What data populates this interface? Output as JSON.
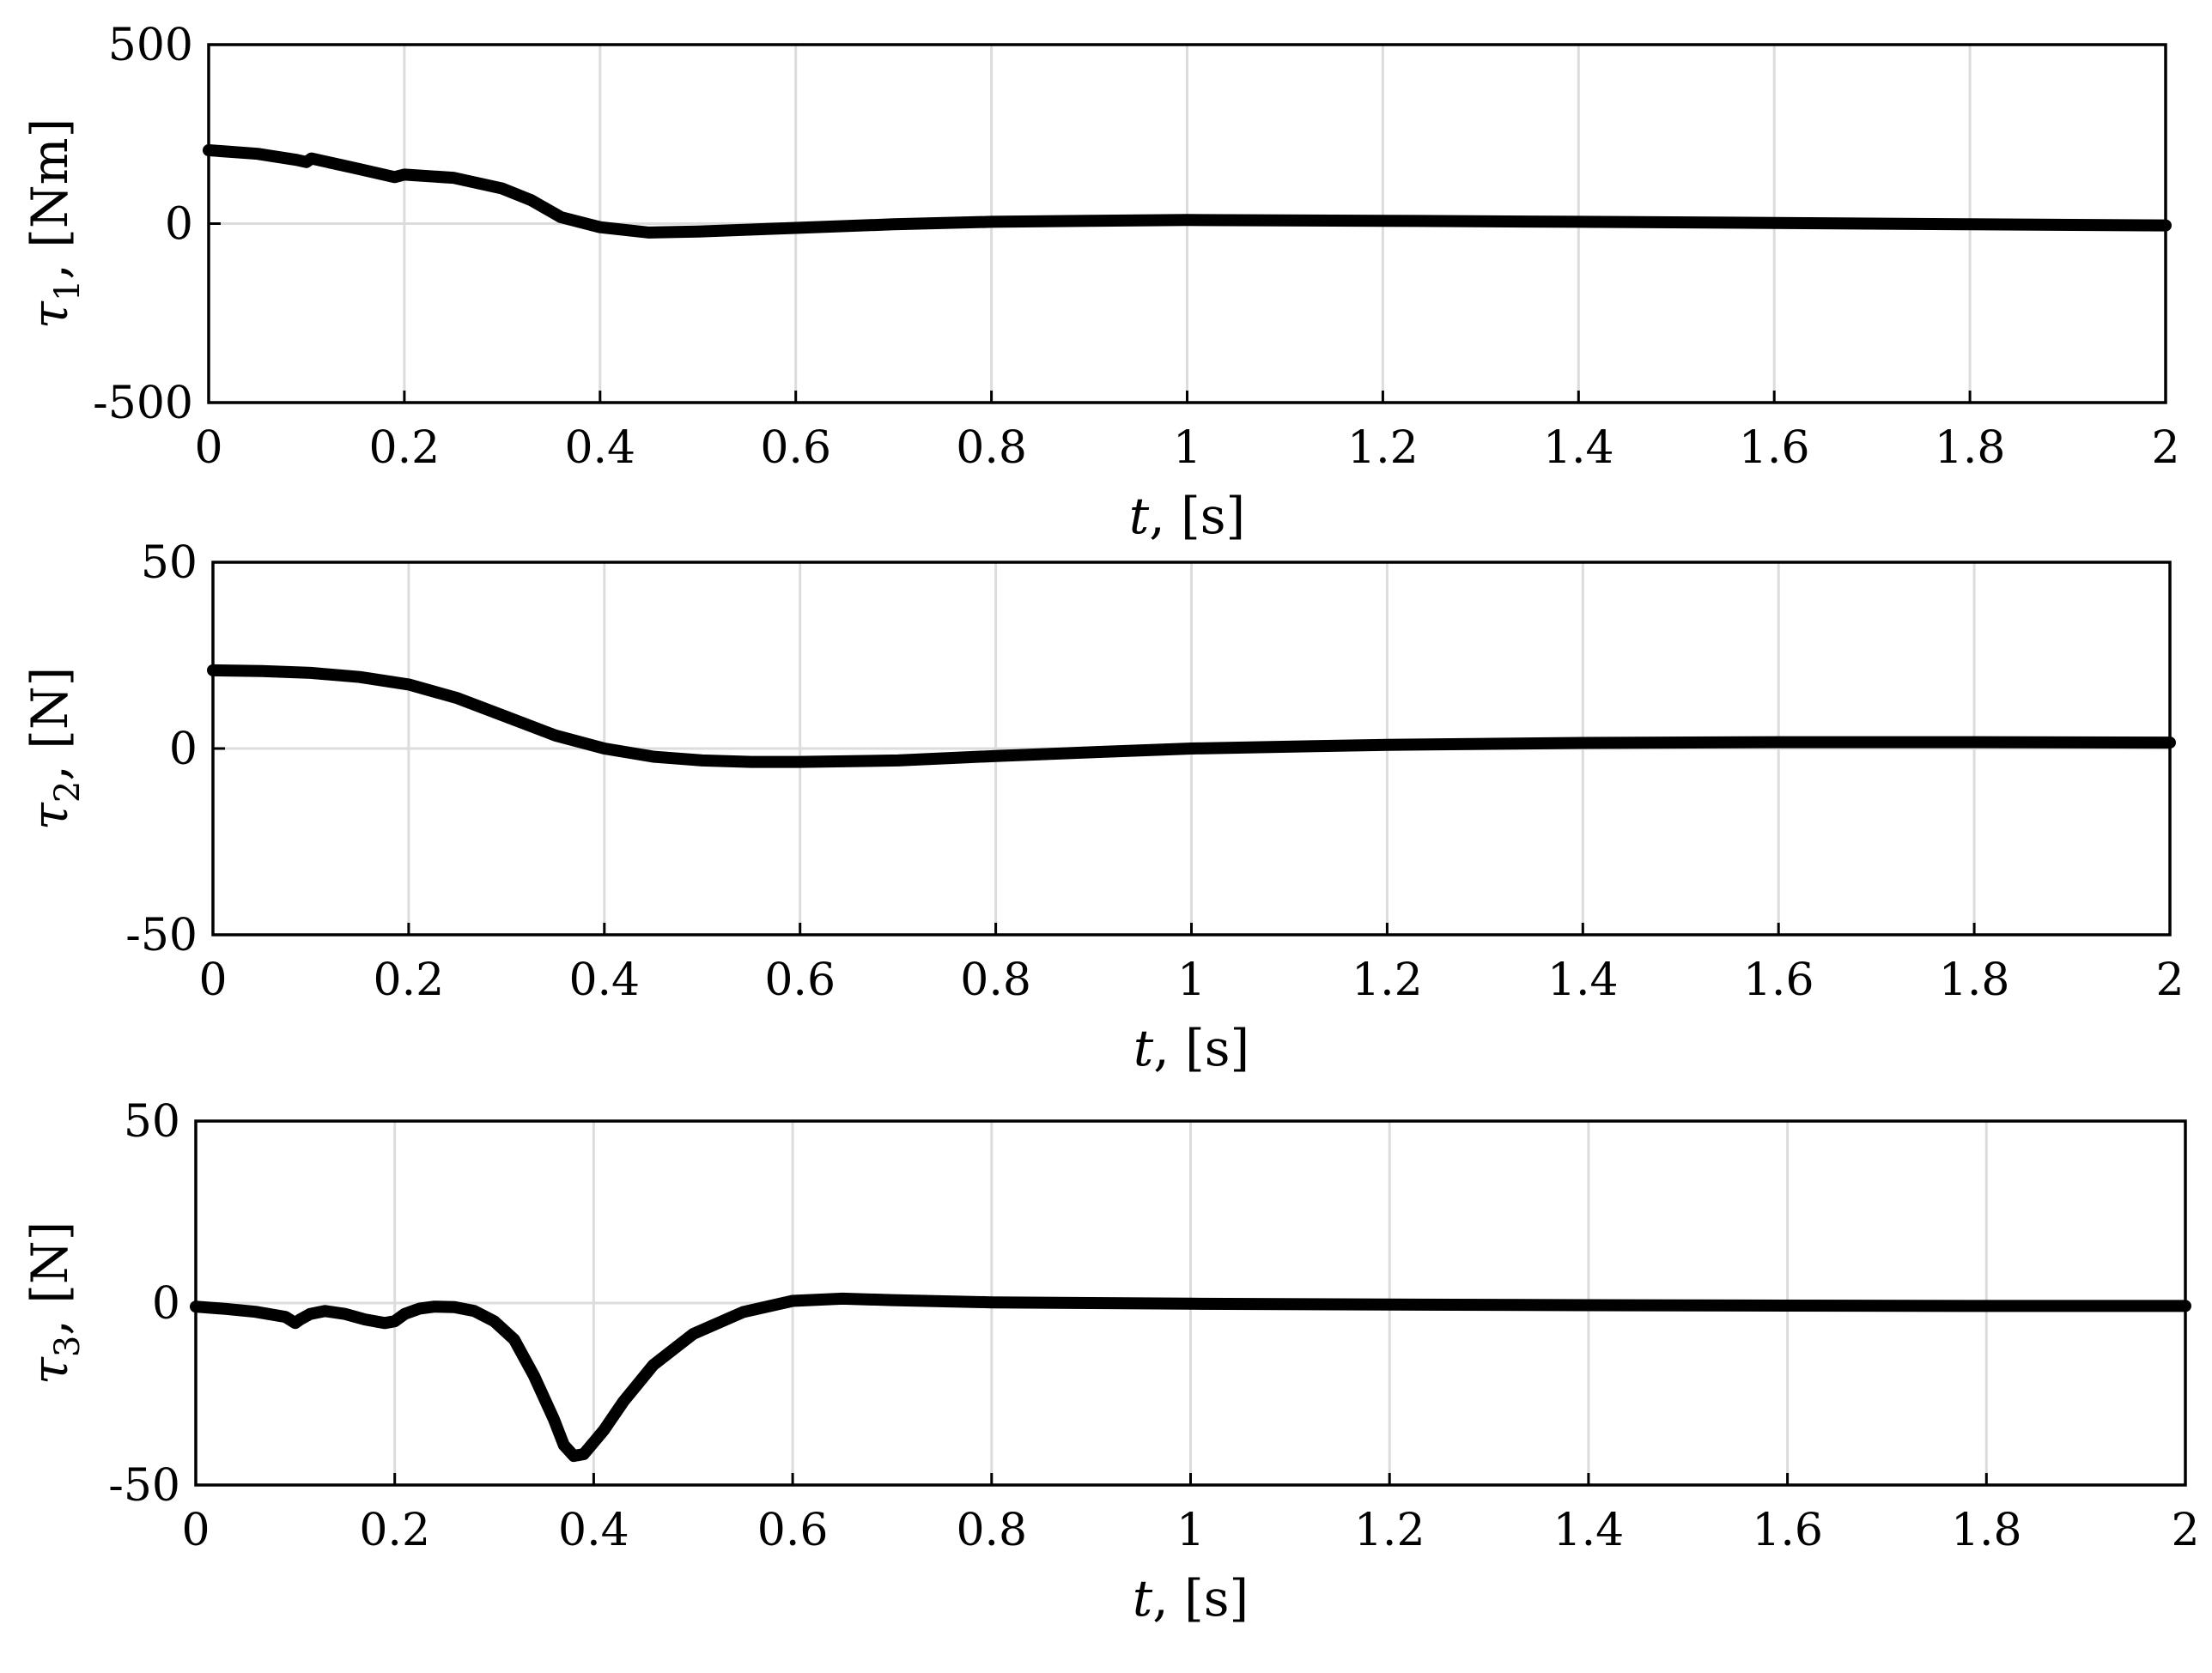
{
  "chart_data": [
    {
      "type": "line",
      "xlabel": "t, [s]",
      "ylabel": "τ1, [Nm]",
      "xlim": [
        0,
        2
      ],
      "ylim": [
        -500,
        500
      ],
      "xticks": [
        0,
        0.2,
        0.4,
        0.6,
        0.8,
        1,
        1.2,
        1.4,
        1.6,
        1.8,
        2
      ],
      "xtick_labels": [
        "0",
        "0.2",
        "0.4",
        "0.6",
        "0.8",
        "1",
        "1.2",
        "1.4",
        "1.6",
        "1.8",
        "2"
      ],
      "yticks": [
        -500,
        0,
        500
      ],
      "ytick_labels": [
        "-500",
        "0",
        "500"
      ],
      "grid": "vertical",
      "series": [
        {
          "color": "#000000",
          "x": [
            0,
            0.05,
            0.09,
            0.1,
            0.105,
            0.15,
            0.19,
            0.2,
            0.25,
            0.3,
            0.33,
            0.36,
            0.4,
            0.45,
            0.5,
            0.6,
            0.7,
            0.8,
            0.9,
            1.0,
            1.2,
            1.4,
            1.6,
            1.8,
            2.0
          ],
          "y": [
            205,
            195,
            178,
            172,
            182,
            155,
            130,
            137,
            128,
            98,
            65,
            18,
            -10,
            -25,
            -22,
            -12,
            -2,
            5,
            8,
            10,
            8,
            5,
            2,
            -2,
            -5
          ]
        }
      ]
    },
    {
      "type": "line",
      "xlabel": "t, [s]",
      "ylabel": "τ2, [N]",
      "xlim": [
        0,
        2
      ],
      "ylim": [
        -50,
        50
      ],
      "xticks": [
        0,
        0.2,
        0.4,
        0.6,
        0.8,
        1,
        1.2,
        1.4,
        1.6,
        1.8,
        2
      ],
      "xtick_labels": [
        "0",
        "0.2",
        "0.4",
        "0.6",
        "0.8",
        "1",
        "1.2",
        "1.4",
        "1.6",
        "1.8",
        "2"
      ],
      "yticks": [
        -50,
        0,
        50
      ],
      "ytick_labels": [
        "-50",
        "0",
        "50"
      ],
      "grid": "vertical",
      "series": [
        {
          "color": "#000000",
          "x": [
            0,
            0.05,
            0.1,
            0.15,
            0.2,
            0.25,
            0.3,
            0.35,
            0.4,
            0.45,
            0.5,
            0.55,
            0.6,
            0.7,
            0.8,
            0.9,
            1.0,
            1.2,
            1.4,
            1.6,
            1.8,
            2.0
          ],
          "y": [
            21,
            20.8,
            20.3,
            19.2,
            17.2,
            13.5,
            8.5,
            3.5,
            0,
            -2.2,
            -3.2,
            -3.6,
            -3.6,
            -3.2,
            -2,
            -1,
            0,
            1,
            1.5,
            1.7,
            1.7,
            1.6
          ]
        }
      ]
    },
    {
      "type": "line",
      "xlabel": "t, [s]",
      "ylabel": "τ3, [N]",
      "xlim": [
        0,
        2
      ],
      "ylim": [
        -50,
        50
      ],
      "xticks": [
        0,
        0.2,
        0.4,
        0.6,
        0.8,
        1,
        1.2,
        1.4,
        1.6,
        1.8,
        2
      ],
      "xtick_labels": [
        "0",
        "0.2",
        "0.4",
        "0.6",
        "0.8",
        "1",
        "1.2",
        "1.4",
        "1.6",
        "1.8",
        "2"
      ],
      "yticks": [
        -50,
        0,
        50
      ],
      "ytick_labels": [
        "-50",
        "0",
        "50"
      ],
      "grid": "vertical",
      "series": [
        {
          "color": "#000000",
          "x": [
            0,
            0.03,
            0.06,
            0.09,
            0.1,
            0.105,
            0.115,
            0.13,
            0.15,
            0.17,
            0.19,
            0.2,
            0.21,
            0.225,
            0.24,
            0.26,
            0.28,
            0.3,
            0.32,
            0.34,
            0.36,
            0.37,
            0.38,
            0.39,
            0.41,
            0.43,
            0.46,
            0.5,
            0.55,
            0.6,
            0.65,
            0.7,
            0.8,
            0.9,
            1.0,
            1.2,
            1.4,
            1.6,
            1.8,
            2.0
          ],
          "y": [
            -1,
            -1.6,
            -2.4,
            -3.8,
            -5.5,
            -4.5,
            -3,
            -2.2,
            -3,
            -4.5,
            -5.5,
            -5,
            -3,
            -1.5,
            -1,
            -1.1,
            -2.2,
            -5,
            -10,
            -20,
            -32,
            -39,
            -42,
            -41.5,
            -35,
            -27,
            -17,
            -8.5,
            -2.5,
            0.6,
            1.2,
            0.8,
            0.2,
            0,
            -0.2,
            -0.4,
            -0.6,
            -0.7,
            -0.8,
            -0.8
          ]
        }
      ]
    }
  ]
}
